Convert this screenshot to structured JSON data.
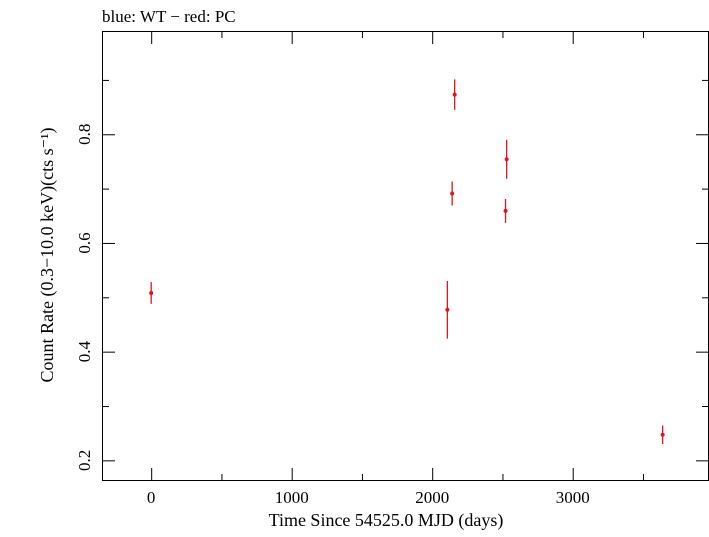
{
  "chart_data": {
    "type": "scatter",
    "title": "blue: WT − red: PC",
    "xlabel": "Time Since 54525.0 MJD (days)",
    "ylabel": "Count Rate (0.3−10.0 keV)(cts s⁻¹)",
    "xlim": [
      -350,
      3970
    ],
    "ylim": [
      0.162,
      0.99
    ],
    "xticks": [
      0,
      1000,
      2000,
      3000
    ],
    "xtick_labels": [
      "0",
      "1000",
      "2000",
      "3000"
    ],
    "yticks": [
      0.2,
      0.4,
      0.6,
      0.8
    ],
    "ytick_labels": [
      "0.2",
      "0.4",
      "0.6",
      "0.8"
    ],
    "grid": false,
    "series": [
      {
        "color": "#e0141e",
        "points": [
          {
            "x": 0,
            "y": 0.508,
            "yerr": 0.02
          },
          {
            "x": 2108,
            "y": 0.477,
            "yerr": 0.053
          },
          {
            "x": 2142,
            "y": 0.691,
            "yerr": 0.022
          },
          {
            "x": 2160,
            "y": 0.873,
            "yerr": 0.028
          },
          {
            "x": 2522,
            "y": 0.659,
            "yerr": 0.022
          },
          {
            "x": 2530,
            "y": 0.754,
            "yerr": 0.036
          },
          {
            "x": 3640,
            "y": 0.247,
            "yerr": 0.017
          }
        ]
      }
    ]
  }
}
